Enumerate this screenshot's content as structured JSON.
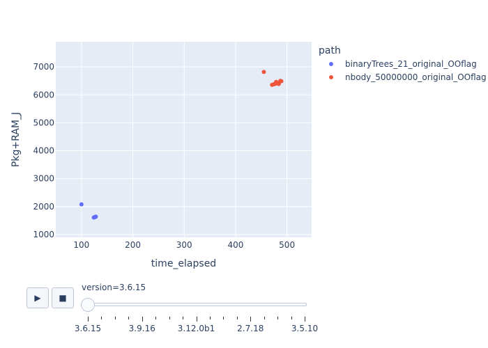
{
  "chart_data": {
    "type": "scatter",
    "xlabel": "time_elapsed",
    "ylabel": "Pkg+RAM_J",
    "xlim": [
      50,
      548
    ],
    "ylim": [
      900,
      7900
    ],
    "x_ticks": [
      100,
      200,
      300,
      400,
      500
    ],
    "y_ticks": [
      1000,
      2000,
      3000,
      4000,
      5000,
      6000,
      7000
    ],
    "grid": true,
    "legend_title": "path",
    "legend_placement": "right",
    "series": [
      {
        "name": "binaryTrees_21_original_OOflag",
        "color": "#636efa",
        "points": [
          {
            "x": 100,
            "y": 2080
          },
          {
            "x": 124,
            "y": 1610
          },
          {
            "x": 125,
            "y": 1620
          },
          {
            "x": 126,
            "y": 1625
          },
          {
            "x": 127,
            "y": 1630
          },
          {
            "x": 128,
            "y": 1640
          }
        ]
      },
      {
        "name": "nbody_50000000_original_OOflag",
        "color": "#ef553b",
        "points": [
          {
            "x": 455,
            "y": 6820
          },
          {
            "x": 471,
            "y": 6360
          },
          {
            "x": 475,
            "y": 6380
          },
          {
            "x": 478,
            "y": 6400
          },
          {
            "x": 479,
            "y": 6460
          },
          {
            "x": 481,
            "y": 6420
          },
          {
            "x": 484,
            "y": 6390
          },
          {
            "x": 487,
            "y": 6500
          },
          {
            "x": 489,
            "y": 6490
          }
        ]
      }
    ]
  },
  "controls": {
    "play_label": "▶",
    "pause_label": "■",
    "slider_prefix": "version=",
    "slider_current": "3.6.15",
    "slider_steps": [
      "3.6.15",
      "3.9.16",
      "3.12.0b1",
      "2.7.18",
      "3.5.10"
    ]
  }
}
